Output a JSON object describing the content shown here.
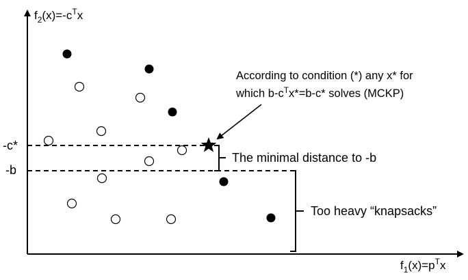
{
  "axes": {
    "y_label": {
      "prefix": "f",
      "sub": "2",
      "mid": "(x)=-c",
      "sup": "T",
      "suffix": "x"
    },
    "x_label": {
      "prefix": "f",
      "sub": "1",
      "mid": "(x)=p",
      "sup": "T",
      "suffix": "x"
    }
  },
  "levels": {
    "neg_c_star": "-c*",
    "neg_b": "-b"
  },
  "annotations": {
    "condition_line1": "According to condition (*) any x* for",
    "condition_line2": "which b-c",
    "condition_line2_sup": "T",
    "condition_line2_rest": "x*=b-c* solves (MCKP)",
    "minimal_distance": "The minimal distance to -b",
    "too_heavy": "Too heavy “knapsacks”"
  },
  "marker": {
    "shape": "star",
    "meaning": "optimal point x*"
  },
  "points": {
    "filled_count": 6,
    "hollow_count": 11
  },
  "colors": {
    "ink": "#000000",
    "background": "#ffffff"
  }
}
